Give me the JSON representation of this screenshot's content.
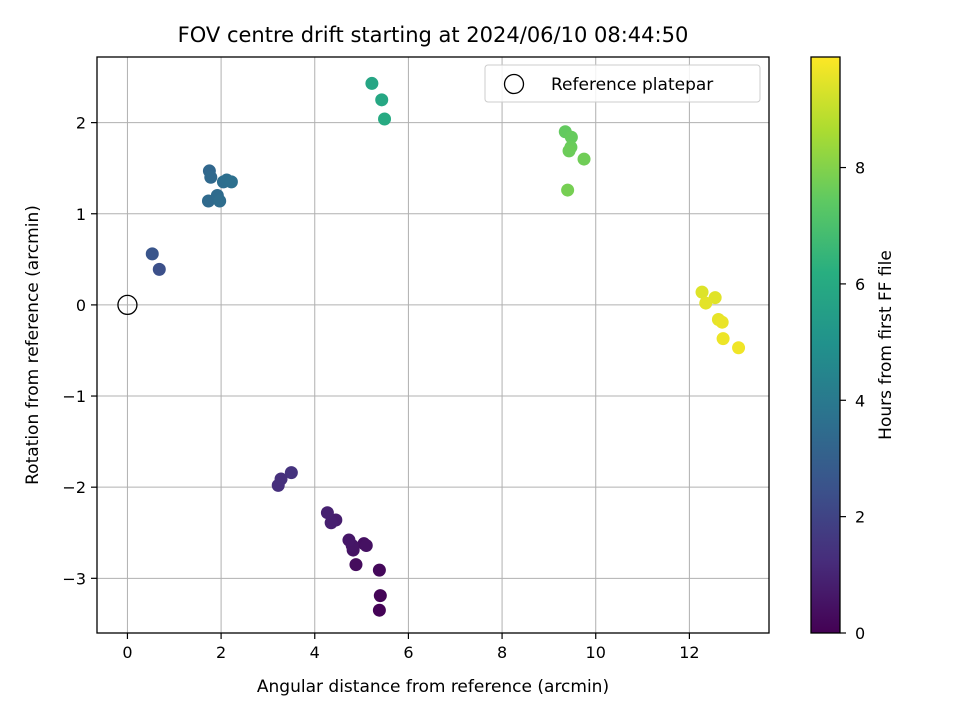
{
  "chart_data": {
    "type": "scatter",
    "title": "FOV centre drift starting at 2024/06/10 08:44:50",
    "xlabel": "Angular distance from reference (arcmin)",
    "ylabel": "Rotation from reference (arcmin)",
    "xlim": [
      -0.65,
      13.7
    ],
    "ylim": [
      -3.6,
      2.72
    ],
    "xticks": [
      0,
      2,
      4,
      6,
      8,
      10,
      12
    ],
    "yticks": [
      -3,
      -2,
      -1,
      0,
      1,
      2
    ],
    "xtick_labels": [
      "0",
      "2",
      "4",
      "6",
      "8",
      "10",
      "12"
    ],
    "ytick_labels": [
      "−3",
      "−2",
      "−1",
      "0",
      "1",
      "2"
    ],
    "grid": true,
    "legend": {
      "placement": "top-right",
      "entries": [
        "Reference platepar"
      ]
    },
    "reference_point": {
      "label": "Reference platepar",
      "x": 0,
      "y": 0
    },
    "colorbar": {
      "label": "Hours from first FF file",
      "colormap": "viridis",
      "range": [
        0,
        9.9
      ],
      "ticks": [
        0,
        2,
        4,
        6,
        8
      ],
      "tick_labels": [
        "0",
        "2",
        "4",
        "6",
        "8"
      ]
    },
    "points": [
      {
        "x": 5.38,
        "y": -3.35,
        "c": 0.05
      },
      {
        "x": 5.4,
        "y": -3.19,
        "c": 0.1
      },
      {
        "x": 5.38,
        "y": -2.91,
        "c": 0.2
      },
      {
        "x": 4.88,
        "y": -2.85,
        "c": 0.3
      },
      {
        "x": 5.05,
        "y": -2.62,
        "c": 0.4
      },
      {
        "x": 5.1,
        "y": -2.64,
        "c": 0.45
      },
      {
        "x": 4.82,
        "y": -2.69,
        "c": 0.5
      },
      {
        "x": 4.8,
        "y": -2.64,
        "c": 0.55
      },
      {
        "x": 4.73,
        "y": -2.58,
        "c": 0.6
      },
      {
        "x": 4.45,
        "y": -2.36,
        "c": 0.8
      },
      {
        "x": 4.35,
        "y": -2.39,
        "c": 0.85
      },
      {
        "x": 4.27,
        "y": -2.28,
        "c": 0.9
      },
      {
        "x": 3.22,
        "y": -1.98,
        "c": 1.3
      },
      {
        "x": 3.28,
        "y": -1.91,
        "c": 1.35
      },
      {
        "x": 3.5,
        "y": -1.84,
        "c": 1.45
      },
      {
        "x": 0.68,
        "y": 0.39,
        "c": 2.4
      },
      {
        "x": 0.53,
        "y": 0.56,
        "c": 2.6
      },
      {
        "x": 1.75,
        "y": 1.47,
        "c": 3.3
      },
      {
        "x": 1.78,
        "y": 1.4,
        "c": 3.35
      },
      {
        "x": 1.73,
        "y": 1.14,
        "c": 3.4
      },
      {
        "x": 1.92,
        "y": 1.2,
        "c": 3.45
      },
      {
        "x": 1.97,
        "y": 1.14,
        "c": 3.5
      },
      {
        "x": 2.05,
        "y": 1.35,
        "c": 3.55
      },
      {
        "x": 2.12,
        "y": 1.37,
        "c": 3.6
      },
      {
        "x": 2.22,
        "y": 1.35,
        "c": 3.65
      },
      {
        "x": 5.22,
        "y": 2.43,
        "c": 5.8
      },
      {
        "x": 5.43,
        "y": 2.25,
        "c": 5.9
      },
      {
        "x": 5.49,
        "y": 2.04,
        "c": 6.0
      },
      {
        "x": 9.35,
        "y": 1.9,
        "c": 7.5
      },
      {
        "x": 9.48,
        "y": 1.84,
        "c": 7.55
      },
      {
        "x": 9.47,
        "y": 1.73,
        "c": 7.6
      },
      {
        "x": 9.43,
        "y": 1.69,
        "c": 7.65
      },
      {
        "x": 9.75,
        "y": 1.6,
        "c": 7.7
      },
      {
        "x": 9.4,
        "y": 1.26,
        "c": 7.8
      },
      {
        "x": 12.27,
        "y": 0.14,
        "c": 9.4
      },
      {
        "x": 12.55,
        "y": 0.08,
        "c": 9.45
      },
      {
        "x": 12.35,
        "y": 0.02,
        "c": 9.5
      },
      {
        "x": 12.62,
        "y": -0.16,
        "c": 9.55
      },
      {
        "x": 12.7,
        "y": -0.19,
        "c": 9.6
      },
      {
        "x": 12.72,
        "y": -0.37,
        "c": 9.65
      },
      {
        "x": 13.05,
        "y": -0.47,
        "c": 9.7
      }
    ]
  }
}
